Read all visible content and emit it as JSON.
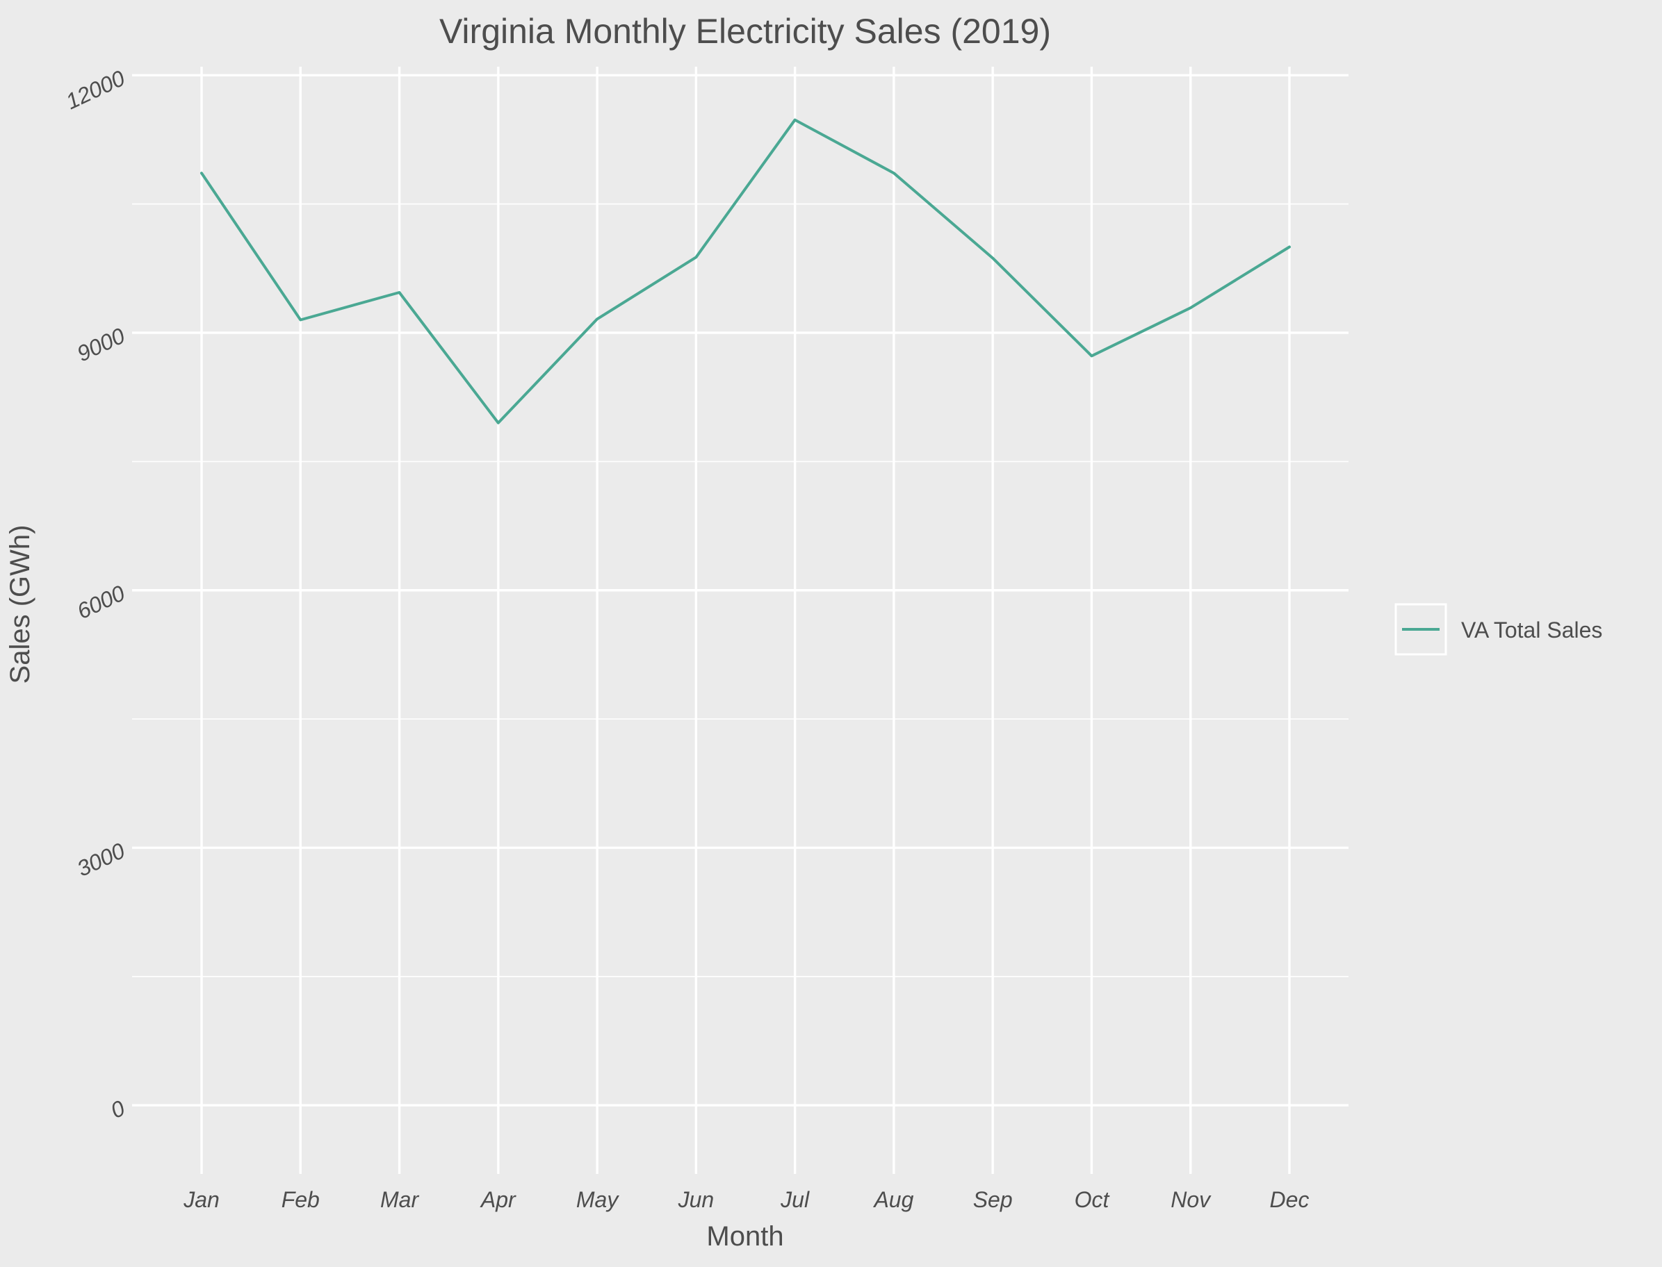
{
  "chart_data": {
    "type": "line",
    "title": "Virginia Monthly Electricity Sales (2019)",
    "xlabel": "Month",
    "ylabel": "Sales (GWh)",
    "categories": [
      "Jan",
      "Feb",
      "Mar",
      "Apr",
      "May",
      "Jun",
      "Jul",
      "Aug",
      "Sep",
      "Oct",
      "Nov",
      "Dec"
    ],
    "series": [
      {
        "name": "VA Total Sales",
        "values": [
          10860,
          9150,
          9470,
          7950,
          9160,
          9880,
          11480,
          10860,
          9870,
          8730,
          9290,
          10000
        ],
        "color": "#4aa893"
      }
    ],
    "ylim": [
      -800,
      12100
    ],
    "yticks": [
      0,
      3000,
      6000,
      9000,
      12000
    ],
    "y_minor_ticks": [
      1500,
      4500,
      7500,
      10500
    ],
    "grid": true,
    "legend_position": "right",
    "panel_background": "#ebebeb",
    "grid_color": "#ffffff",
    "text_color": "#4d4d4d"
  }
}
